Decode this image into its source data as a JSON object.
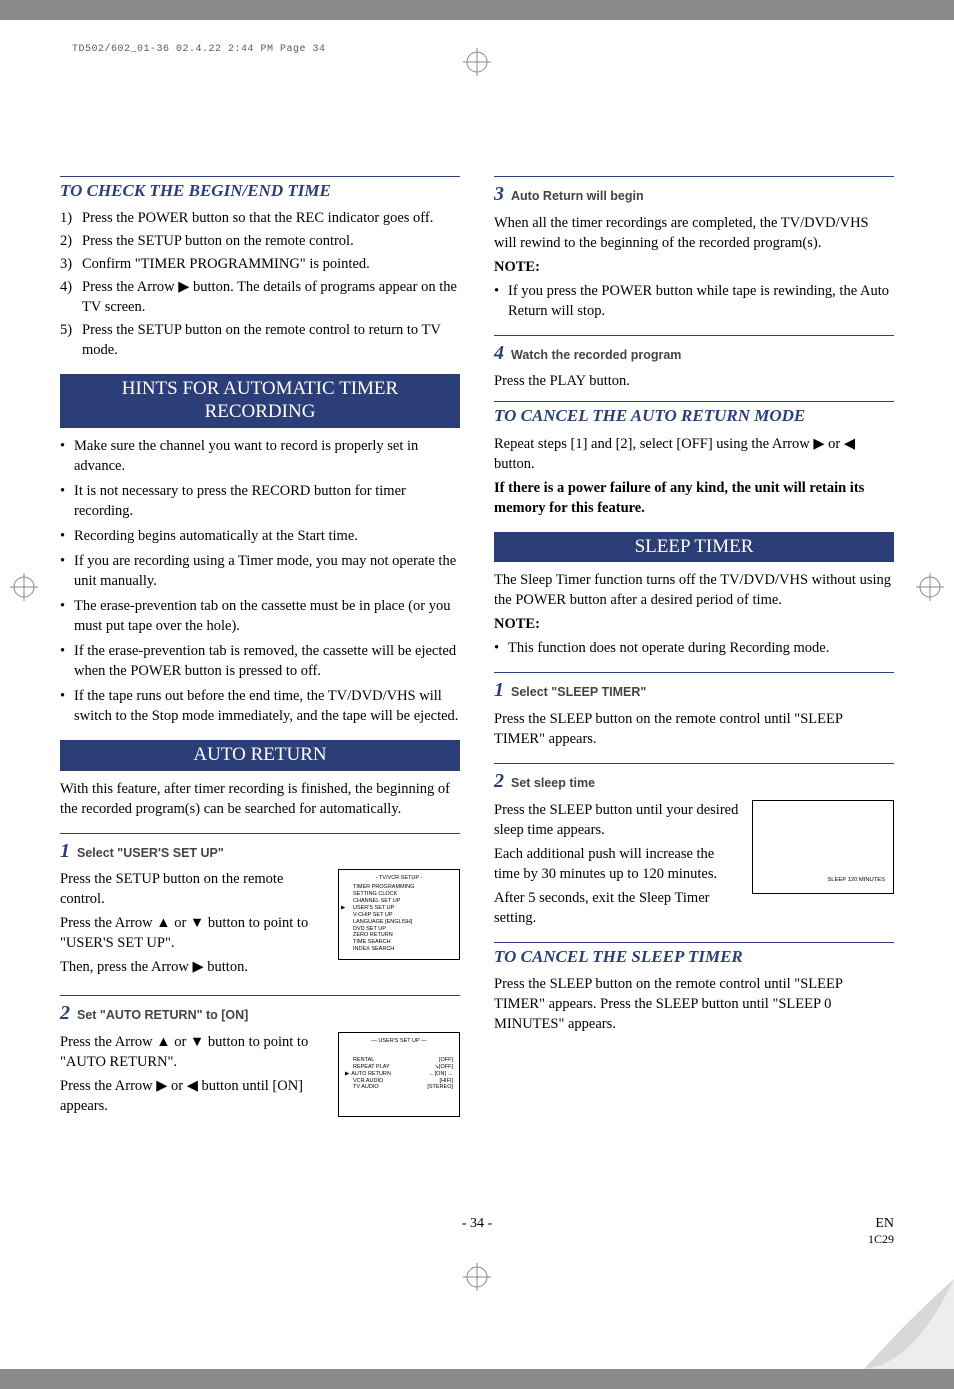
{
  "print_header": "TD502/602_01-36  02.4.22 2:44 PM  Page 34",
  "left": {
    "check_title": "TO CHECK THE BEGIN/END TIME",
    "check_steps": [
      "Press the POWER button so that the REC indicator goes off.",
      "Press the SETUP button on the remote control.",
      "Confirm \"TIMER PROGRAMMING\" is pointed.",
      "Press the Arrow ▶ button. The details of programs appear on the TV screen.",
      "Press the SETUP button on the remote control to return to TV mode."
    ],
    "hints_title": "HINTS FOR AUTOMATIC TIMER RECORDING",
    "hints": [
      "Make sure the channel you want to record is properly set in advance.",
      "It is not necessary to press the RECORD button for timer recording.",
      "Recording begins automatically at the Start time.",
      "If you are recording using a Timer mode, you may not operate the unit manually.",
      "The erase-prevention tab on the cassette must be in place (or you must put tape over the hole).",
      "If the erase-prevention tab is removed, the cassette will be ejected when the POWER button is pressed to off.",
      "If the tape runs out before the end time, the TV/DVD/VHS will switch to the Stop mode immediately, and the tape will be ejected."
    ],
    "auto_return_title": "AUTO RETURN",
    "auto_return_intro": "With this feature, after timer recording is finished, the beginning of the recorded program(s) can be searched for automatically.",
    "step1_label": "Select \"USER'S SET UP\"",
    "step1_p1": "Press the SETUP button on the remote control.",
    "step1_p2": "Press the Arrow ▲ or ▼ button to point to \"USER'S SET UP\".",
    "step1_p3": "Then, press the Arrow ▶ button.",
    "step2_label": "Set \"AUTO RETURN\" to [ON]",
    "step2_p1": "Press the Arrow ▲ or ▼ button to point to \"AUTO RETURN\".",
    "step2_p2": "Press the Arrow ▶ or ◀ button until [ON] appears.",
    "osd1": {
      "title": "- TV/VCR SETUP -",
      "lines": [
        "TIMER PROGRAMMING",
        "SETTING CLOCK",
        "CHANNEL SET UP",
        "USER'S SET UP",
        "V-CHIP SET UP",
        "LANGUAGE  [ENGLISH]",
        "DVD SET UP",
        "ZERO RETURN",
        "TIME SEARCH",
        "INDEX SEARCH"
      ],
      "pointer_index": 3
    },
    "osd2": {
      "title": "— USER'S SET UP —",
      "rows": [
        [
          "RENTAL",
          "[OFF]"
        ],
        [
          "REPEAT PLAY",
          "↘[OFF]"
        ],
        [
          "AUTO RETURN",
          "←[ON] →"
        ],
        [
          "VCR AUDIO",
          "[HIFI]"
        ],
        [
          "TV AUDIO",
          "[STEREO]"
        ]
      ],
      "pointer_index": 2
    }
  },
  "right": {
    "step3_label": "Auto Return will begin",
    "step3_p": "When all the timer recordings are completed, the TV/DVD/VHS will rewind to the beginning of the recorded program(s).",
    "note_label": "NOTE:",
    "step3_note": "If you press the POWER button while tape is rewinding, the Auto Return will stop.",
    "step4_label": "Watch the recorded program",
    "step4_p": "Press the PLAY button.",
    "cancel_auto_title": "TO CANCEL THE AUTO RETURN MODE",
    "cancel_auto_p1": "Repeat steps [1] and [2], select [OFF] using the Arrow ▶ or ◀ button.",
    "cancel_auto_p2": "If there is a power failure of any kind, the unit will retain its memory for this feature.",
    "sleep_title": "SLEEP TIMER",
    "sleep_intro": "The Sleep Timer function turns off the TV/DVD/VHS  without using the POWER button after a desired  period of time.",
    "sleep_note": "This function does not operate during Recording mode.",
    "sleep_step1_label": "Select \"SLEEP TIMER\"",
    "sleep_step1_p": "Press the SLEEP button on the remote control until \"SLEEP TIMER\" appears.",
    "sleep_step2_label": "Set sleep time",
    "sleep_step2_p1": "Press the SLEEP button until your desired sleep time appears.",
    "sleep_step2_p2": "Each additional push will increase the time by 30 minutes up to 120 minutes.",
    "sleep_step2_p3": "After 5 seconds, exit the Sleep Timer setting.",
    "sleep_osd": "SLEEP 120 MINUTES",
    "cancel_sleep_title": "TO CANCEL THE SLEEP TIMER",
    "cancel_sleep_p": "Press the SLEEP button on the remote control until \"SLEEP TIMER\" appears. Press the SLEEP button until \"SLEEP 0 MINUTES\" appears."
  },
  "footer": {
    "page": "- 34 -",
    "lang": "EN",
    "code": "1C29"
  }
}
